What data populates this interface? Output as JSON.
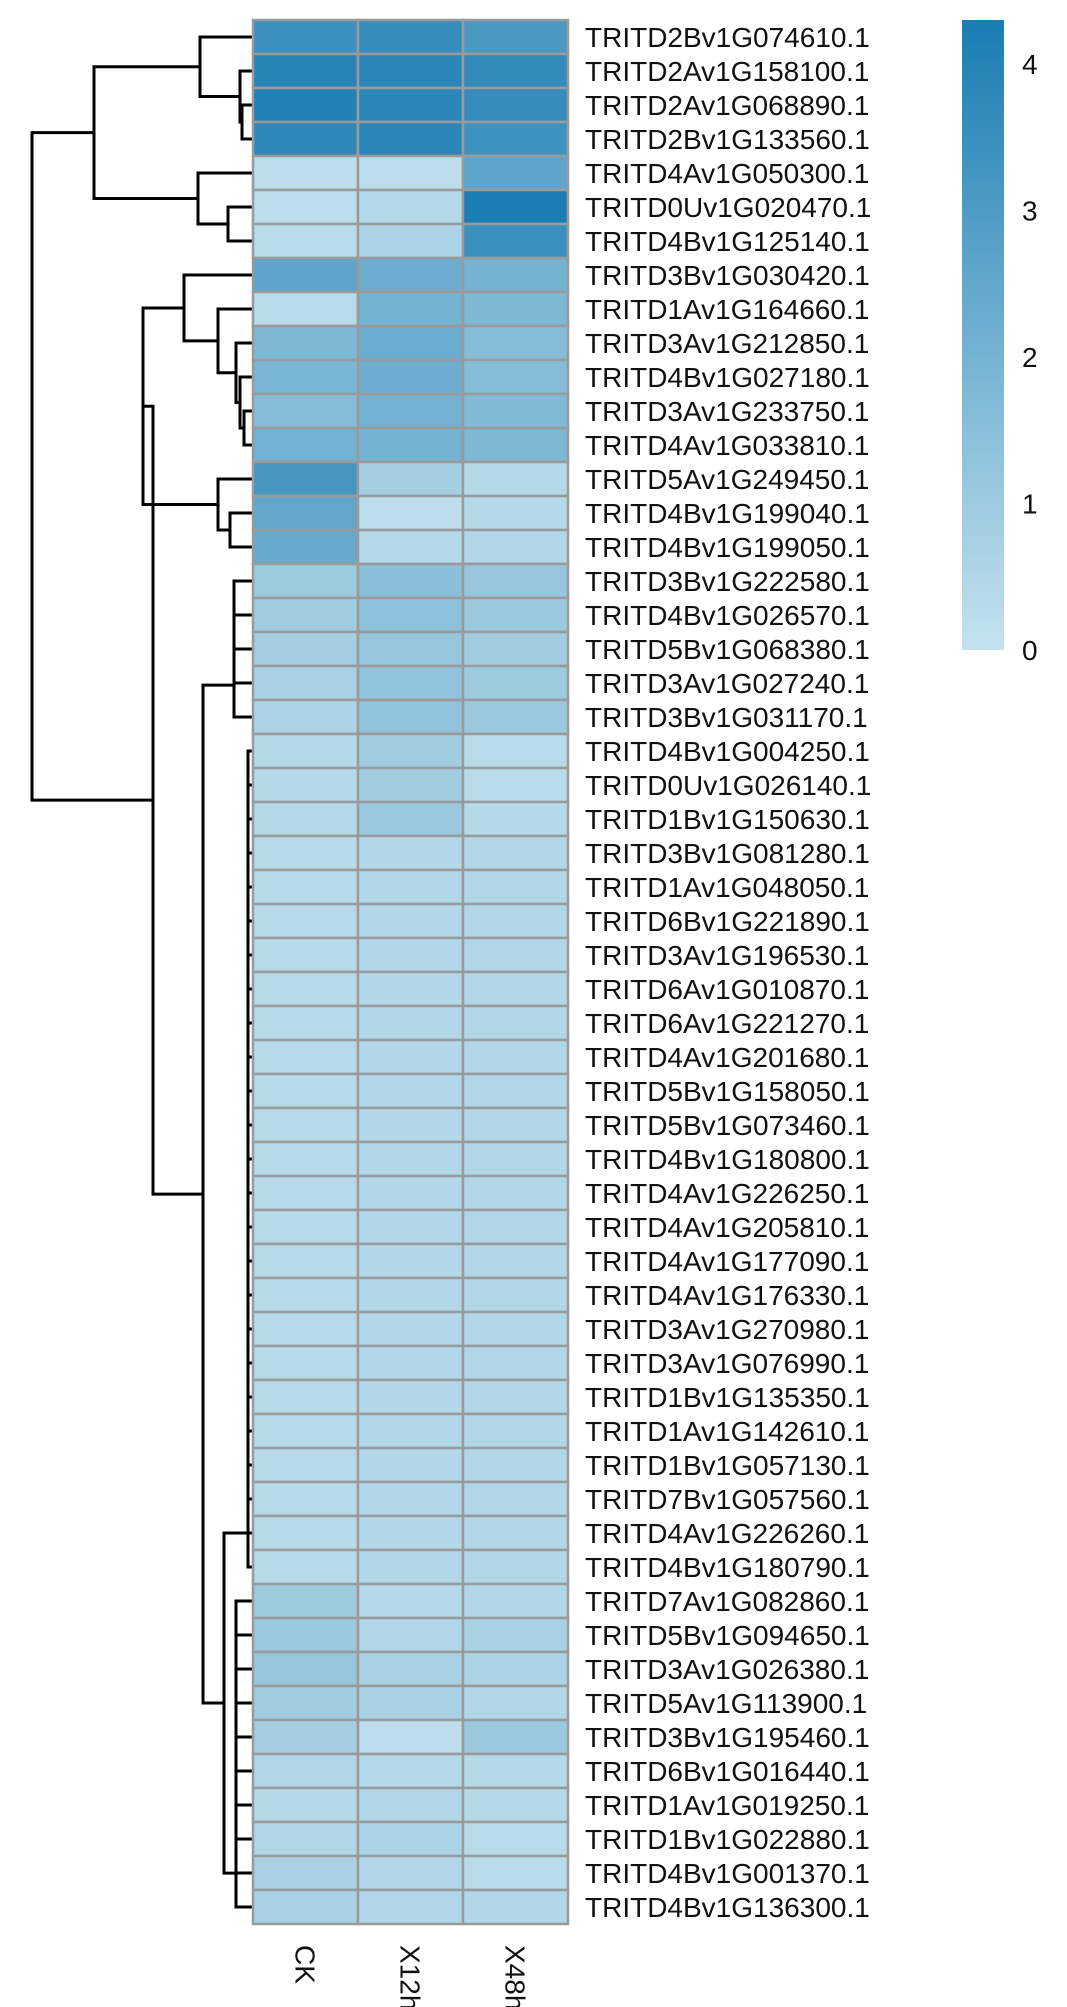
{
  "chart_data": {
    "type": "heatmap",
    "columns": [
      "CK",
      "X12h",
      "X48h"
    ],
    "rows": [
      "TRITD2Bv1G074610.1",
      "TRITD2Av1G158100.1",
      "TRITD2Av1G068890.1",
      "TRITD2Bv1G133560.1",
      "TRITD4Av1G050300.1",
      "TRITD0Uv1G020470.1",
      "TRITD4Bv1G125140.1",
      "TRITD3Bv1G030420.1",
      "TRITD1Av1G164660.1",
      "TRITD3Av1G212850.1",
      "TRITD4Bv1G027180.1",
      "TRITD3Av1G233750.1",
      "TRITD4Av1G033810.1",
      "TRITD5Av1G249450.1",
      "TRITD4Bv1G199040.1",
      "TRITD4Bv1G199050.1",
      "TRITD3Bv1G222580.1",
      "TRITD4Bv1G026570.1",
      "TRITD5Bv1G068380.1",
      "TRITD3Av1G027240.1",
      "TRITD3Bv1G031170.1",
      "TRITD4Bv1G004250.1",
      "TRITD0Uv1G026140.1",
      "TRITD1Bv1G150630.1",
      "TRITD3Bv1G081280.1",
      "TRITD1Av1G048050.1",
      "TRITD6Bv1G221890.1",
      "TRITD3Av1G196530.1",
      "TRITD6Av1G010870.1",
      "TRITD6Av1G221270.1",
      "TRITD4Av1G201680.1",
      "TRITD5Bv1G158050.1",
      "TRITD5Bv1G073460.1",
      "TRITD4Bv1G180800.1",
      "TRITD4Av1G226250.1",
      "TRITD4Av1G205810.1",
      "TRITD4Av1G177090.1",
      "TRITD4Av1G176330.1",
      "TRITD3Av1G270980.1",
      "TRITD3Av1G076990.1",
      "TRITD1Bv1G135350.1",
      "TRITD1Av1G142610.1",
      "TRITD1Bv1G057130.1",
      "TRITD7Bv1G057560.1",
      "TRITD4Av1G226260.1",
      "TRITD4Bv1G180790.1",
      "TRITD7Av1G082860.1",
      "TRITD5Bv1G094650.1",
      "TRITD3Av1G026380.1",
      "TRITD5Av1G113900.1",
      "TRITD3Bv1G195460.1",
      "TRITD6Bv1G016440.1",
      "TRITD1Av1G019250.1",
      "TRITD1Bv1G022880.1",
      "TRITD4Bv1G001370.1",
      "TRITD4Bv1G136300.1"
    ],
    "values": [
      [
        3.5,
        3.6,
        3.1
      ],
      [
        4.0,
        3.9,
        3.7
      ],
      [
        4.1,
        3.9,
        3.6
      ],
      [
        3.8,
        3.9,
        3.4
      ],
      [
        0.2,
        0.2,
        2.6
      ],
      [
        0.2,
        0.4,
        4.3
      ],
      [
        0.3,
        0.6,
        3.5
      ],
      [
        2.6,
        2.2,
        2.0
      ],
      [
        0.3,
        2.0,
        1.8
      ],
      [
        1.8,
        2.3,
        1.6
      ],
      [
        1.9,
        2.2,
        1.6
      ],
      [
        1.6,
        2.1,
        1.7
      ],
      [
        2.1,
        2.0,
        1.8
      ],
      [
        3.2,
        0.8,
        0.4
      ],
      [
        2.5,
        0.2,
        0.4
      ],
      [
        2.4,
        0.4,
        0.5
      ],
      [
        1.0,
        1.5,
        1.2
      ],
      [
        0.9,
        1.4,
        1.1
      ],
      [
        0.8,
        1.2,
        0.9
      ],
      [
        0.7,
        1.3,
        1.0
      ],
      [
        0.6,
        1.3,
        1.1
      ],
      [
        0.4,
        0.9,
        0.3
      ],
      [
        0.4,
        0.9,
        0.3
      ],
      [
        0.4,
        1.1,
        0.4
      ],
      [
        0.35,
        0.45,
        0.5
      ],
      [
        0.35,
        0.45,
        0.5
      ],
      [
        0.35,
        0.45,
        0.5
      ],
      [
        0.35,
        0.45,
        0.5
      ],
      [
        0.35,
        0.45,
        0.5
      ],
      [
        0.35,
        0.45,
        0.5
      ],
      [
        0.35,
        0.45,
        0.5
      ],
      [
        0.35,
        0.45,
        0.5
      ],
      [
        0.35,
        0.45,
        0.5
      ],
      [
        0.35,
        0.45,
        0.5
      ],
      [
        0.35,
        0.45,
        0.5
      ],
      [
        0.35,
        0.45,
        0.5
      ],
      [
        0.35,
        0.45,
        0.5
      ],
      [
        0.35,
        0.45,
        0.5
      ],
      [
        0.35,
        0.45,
        0.5
      ],
      [
        0.35,
        0.45,
        0.5
      ],
      [
        0.35,
        0.45,
        0.5
      ],
      [
        0.35,
        0.45,
        0.5
      ],
      [
        0.35,
        0.45,
        0.5
      ],
      [
        0.35,
        0.45,
        0.5
      ],
      [
        0.35,
        0.45,
        0.5
      ],
      [
        0.35,
        0.45,
        0.5
      ],
      [
        1.0,
        0.4,
        0.5
      ],
      [
        1.1,
        0.5,
        0.7
      ],
      [
        1.2,
        0.7,
        0.6
      ],
      [
        0.9,
        0.7,
        0.5
      ],
      [
        0.8,
        0.2,
        1.1
      ],
      [
        0.5,
        0.4,
        0.4
      ],
      [
        0.4,
        0.5,
        0.4
      ],
      [
        0.5,
        0.6,
        0.3
      ],
      [
        0.7,
        0.5,
        0.3
      ],
      [
        0.7,
        0.5,
        0.5
      ]
    ],
    "color_scale": {
      "min": 0,
      "max": 4.3,
      "low_color": "#c4e2ee",
      "high_color": "#1a7db3",
      "cell_border": "#9a9a9a"
    },
    "legend": {
      "ticks": [
        0,
        1,
        2,
        3,
        4
      ],
      "placement": "top-right"
    },
    "row_dendrogram": true,
    "xlabel": "",
    "ylabel": "",
    "title": ""
  }
}
